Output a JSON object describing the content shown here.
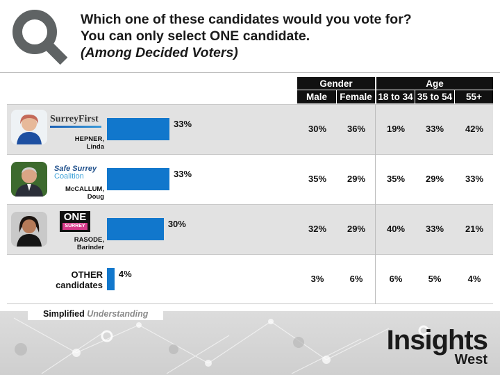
{
  "title": {
    "line1": "Which one of these candidates would you vote for?",
    "line2": "You can only select ONE candidate.",
    "line3": "(Among Decided Voters)"
  },
  "table_header": {
    "gender": "Gender",
    "age": "Age",
    "columns": [
      "Male",
      "Female",
      "18 to 34",
      "35 to 54",
      "55+"
    ]
  },
  "rows": [
    {
      "party_line1": "SurreyFirst",
      "party_line2": "",
      "name_line1": "HEPNER,",
      "name_line2": "Linda",
      "total": "33%",
      "cells": [
        "30%",
        "36%",
        "19%",
        "33%",
        "42%"
      ]
    },
    {
      "party_line1": "Safe Surrey",
      "party_line2": "Coalition",
      "name_line1": "McCALLUM,",
      "name_line2": "Doug",
      "total": "33%",
      "cells": [
        "35%",
        "29%",
        "35%",
        "29%",
        "33%"
      ]
    },
    {
      "party_line1": "ONE",
      "party_line2": "SURREY",
      "name_line1": "RASODE,",
      "name_line2": "Barinder",
      "total": "30%",
      "cells": [
        "32%",
        "29%",
        "40%",
        "33%",
        "21%"
      ]
    },
    {
      "party_line1": "",
      "party_line2": "",
      "name_line1": "OTHER",
      "name_line2": "candidates",
      "total": "4%",
      "cells": [
        "3%",
        "6%",
        "6%",
        "5%",
        "4%"
      ]
    }
  ],
  "footer": {
    "label_a": "Simplified",
    "label_b": "Understanding",
    "brand_main": "Insights",
    "brand_sub": "West"
  },
  "colors": {
    "bar": "#1177cc",
    "header_bg": "#111111",
    "row_shade": "#e2e2e2"
  },
  "chart_data": {
    "type": "bar",
    "orientation": "horizontal",
    "categories": [
      "HEPNER, Linda",
      "McCALLUM, Doug",
      "RASODE, Barinder",
      "OTHER candidates"
    ],
    "values": [
      33,
      33,
      30,
      4
    ],
    "unit": "%",
    "title": "Which one of these candidates would you vote for? You can only select ONE candidate. (Among Decided Voters)",
    "breakdown_columns": [
      "Male",
      "Female",
      "18 to 34",
      "35 to 54",
      "55+"
    ],
    "breakdown_groups": {
      "Gender": [
        "Male",
        "Female"
      ],
      "Age": [
        "18 to 34",
        "35 to 54",
        "55+"
      ]
    },
    "breakdown_values": [
      [
        30,
        36,
        19,
        33,
        42
      ],
      [
        35,
        29,
        35,
        29,
        33
      ],
      [
        32,
        29,
        40,
        33,
        21
      ],
      [
        3,
        6,
        6,
        5,
        4
      ]
    ]
  }
}
